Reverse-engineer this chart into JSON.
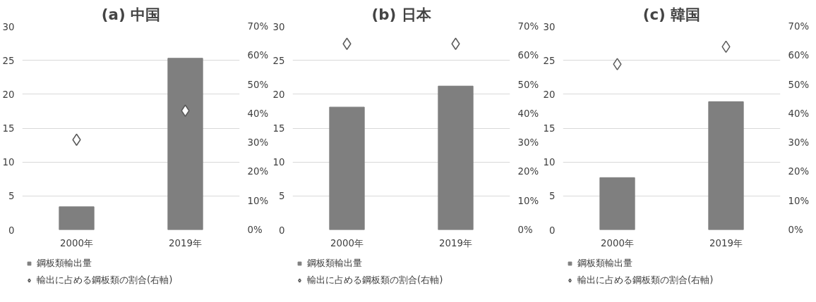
{
  "chart_data": [
    {
      "type": "bar",
      "title": "(a) 中国",
      "categories": [
        "2000年",
        "2019年"
      ],
      "ylim": [
        0,
        30
      ],
      "yticks": [
        0,
        5,
        10,
        15,
        20,
        25,
        30
      ],
      "y2lim": [
        0,
        70
      ],
      "y2ticks": [
        {
          "value": 0,
          "label": "0%"
        },
        {
          "value": 10,
          "label": "10%"
        },
        {
          "value": 20,
          "label": "20%"
        },
        {
          "value": 30,
          "label": "30%"
        },
        {
          "value": 40,
          "label": "40%"
        },
        {
          "value": 50,
          "label": "50%"
        },
        {
          "value": 60,
          "label": "60%"
        },
        {
          "value": 70,
          "label": "70%"
        }
      ],
      "grid": "y",
      "legend": "bottom",
      "series": [
        {
          "name": "鋼板類輸出量",
          "color": "#7f7f7f",
          "values": [
            3.4,
            25.3
          ]
        },
        {
          "name": "輸出に占める鋼板類の割合(右軸)",
          "type": "scatter",
          "marker": "diamond",
          "axis": "y2",
          "color": "#595959",
          "values": [
            31,
            41
          ]
        }
      ]
    },
    {
      "type": "bar",
      "title": "(b) 日本",
      "categories": [
        "2000年",
        "2019年"
      ],
      "ylim": [
        0,
        30
      ],
      "yticks": [
        0,
        5,
        10,
        15,
        20,
        25,
        30
      ],
      "y2lim": [
        0,
        70
      ],
      "y2ticks": [
        {
          "value": 0,
          "label": "0%"
        },
        {
          "value": 10,
          "label": "10%"
        },
        {
          "value": 20,
          "label": "20%"
        },
        {
          "value": 30,
          "label": "30%"
        },
        {
          "value": 40,
          "label": "40%"
        },
        {
          "value": 50,
          "label": "50%"
        },
        {
          "value": 60,
          "label": "60%"
        },
        {
          "value": 70,
          "label": "70%"
        }
      ],
      "grid": "y",
      "legend": "bottom",
      "series": [
        {
          "name": "鋼板類輸出量",
          "color": "#7f7f7f",
          "values": [
            18.1,
            21.2
          ]
        },
        {
          "name": "輸出に占める鋼板類の割合(右軸)",
          "type": "scatter",
          "marker": "diamond",
          "axis": "y2",
          "color": "#595959",
          "values": [
            64,
            64
          ]
        }
      ]
    },
    {
      "type": "bar",
      "title": "(c) 韓国",
      "categories": [
        "2000年",
        "2019年"
      ],
      "ylim": [
        0,
        30
      ],
      "yticks": [
        0,
        5,
        10,
        15,
        20,
        25,
        30
      ],
      "y2lim": [
        0,
        70
      ],
      "y2ticks": [
        {
          "value": 0,
          "label": "0%"
        },
        {
          "value": 10,
          "label": "10%"
        },
        {
          "value": 20,
          "label": "20%"
        },
        {
          "value": 30,
          "label": "30%"
        },
        {
          "value": 40,
          "label": "40%"
        },
        {
          "value": 50,
          "label": "50%"
        },
        {
          "value": 60,
          "label": "60%"
        },
        {
          "value": 70,
          "label": "70%"
        }
      ],
      "grid": "y",
      "legend": "bottom",
      "series": [
        {
          "name": "鋼板類輸出量",
          "color": "#7f7f7f",
          "values": [
            7.7,
            18.9
          ]
        },
        {
          "name": "輸出に占める鋼板類の割合(右軸)",
          "type": "scatter",
          "marker": "diamond",
          "axis": "y2",
          "color": "#595959",
          "values": [
            57,
            63
          ]
        }
      ]
    }
  ]
}
